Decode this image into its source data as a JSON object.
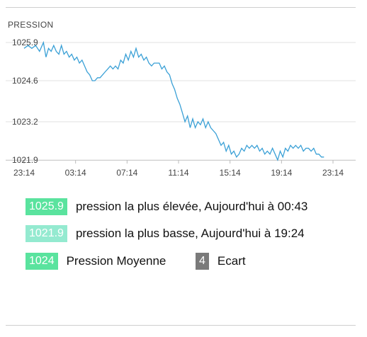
{
  "chart_data": {
    "type": "line",
    "title": "PRESSION",
    "xlabel": "",
    "ylabel": "",
    "y_ticks": [
      "1021.9",
      "1023.2",
      "1024.6",
      "1025.9"
    ],
    "x_ticks": [
      "23:14",
      "03:14",
      "07:14",
      "11:14",
      "15:14",
      "19:14",
      "23:14"
    ],
    "ylim": [
      1021.9,
      1025.9
    ],
    "grid": true,
    "line_color": "#3aa0d6",
    "series": [
      {
        "values": [
          [
            0.0,
            1025.7
          ],
          [
            0.3,
            1025.8
          ],
          [
            0.6,
            1025.7
          ],
          [
            0.9,
            1025.8
          ],
          [
            1.2,
            1025.6
          ],
          [
            1.5,
            1025.9
          ],
          [
            1.7,
            1025.4
          ],
          [
            1.9,
            1025.7
          ],
          [
            2.1,
            1025.6
          ],
          [
            2.3,
            1025.8
          ],
          [
            2.5,
            1025.6
          ],
          [
            2.7,
            1025.5
          ],
          [
            2.9,
            1025.8
          ],
          [
            3.1,
            1025.5
          ],
          [
            3.3,
            1025.6
          ],
          [
            3.5,
            1025.4
          ],
          [
            3.7,
            1025.5
          ],
          [
            3.9,
            1025.3
          ],
          [
            4.1,
            1025.4
          ],
          [
            4.3,
            1025.2
          ],
          [
            4.5,
            1025.3
          ],
          [
            4.7,
            1025.1
          ],
          [
            4.9,
            1024.9
          ],
          [
            5.1,
            1024.8
          ],
          [
            5.3,
            1024.6
          ],
          [
            5.5,
            1024.6
          ],
          [
            5.7,
            1024.7
          ],
          [
            5.9,
            1024.7
          ],
          [
            6.1,
            1024.8
          ],
          [
            6.3,
            1024.9
          ],
          [
            6.5,
            1025.0
          ],
          [
            6.7,
            1025.1
          ],
          [
            6.9,
            1025.0
          ],
          [
            7.1,
            1025.1
          ],
          [
            7.3,
            1025.0
          ],
          [
            7.5,
            1025.3
          ],
          [
            7.7,
            1025.2
          ],
          [
            7.9,
            1025.5
          ],
          [
            8.1,
            1025.3
          ],
          [
            8.3,
            1025.6
          ],
          [
            8.5,
            1025.4
          ],
          [
            8.7,
            1025.7
          ],
          [
            8.9,
            1025.4
          ],
          [
            9.1,
            1025.5
          ],
          [
            9.3,
            1025.3
          ],
          [
            9.5,
            1025.4
          ],
          [
            9.7,
            1025.2
          ],
          [
            9.9,
            1025.1
          ],
          [
            10.1,
            1025.2
          ],
          [
            10.3,
            1025.2
          ],
          [
            10.5,
            1025.2
          ],
          [
            10.7,
            1025.0
          ],
          [
            10.9,
            1025.1
          ],
          [
            11.1,
            1024.9
          ],
          [
            11.3,
            1024.8
          ],
          [
            11.5,
            1024.5
          ],
          [
            11.7,
            1024.3
          ],
          [
            11.9,
            1024.0
          ],
          [
            12.1,
            1023.8
          ],
          [
            12.3,
            1023.5
          ],
          [
            12.5,
            1023.2
          ],
          [
            12.7,
            1023.4
          ],
          [
            12.9,
            1023.0
          ],
          [
            13.1,
            1023.3
          ],
          [
            13.3,
            1023.0
          ],
          [
            13.5,
            1023.2
          ],
          [
            13.7,
            1023.1
          ],
          [
            13.9,
            1023.3
          ],
          [
            14.1,
            1023.0
          ],
          [
            14.3,
            1023.2
          ],
          [
            14.5,
            1023.0
          ],
          [
            14.7,
            1022.9
          ],
          [
            14.9,
            1022.8
          ],
          [
            15.1,
            1022.6
          ],
          [
            15.3,
            1022.4
          ],
          [
            15.5,
            1022.5
          ],
          [
            15.7,
            1022.2
          ],
          [
            15.9,
            1022.4
          ],
          [
            16.1,
            1022.1
          ],
          [
            16.3,
            1022.2
          ],
          [
            16.5,
            1022.0
          ],
          [
            16.7,
            1022.1
          ],
          [
            16.9,
            1022.3
          ],
          [
            17.1,
            1022.2
          ],
          [
            17.3,
            1022.4
          ],
          [
            17.5,
            1022.3
          ],
          [
            17.7,
            1022.4
          ],
          [
            17.9,
            1022.3
          ],
          [
            18.1,
            1022.4
          ],
          [
            18.3,
            1022.2
          ],
          [
            18.5,
            1022.3
          ],
          [
            18.7,
            1022.1
          ],
          [
            18.9,
            1022.2
          ],
          [
            19.1,
            1022.1
          ],
          [
            19.3,
            1022.3
          ],
          [
            19.5,
            1022.1
          ],
          [
            19.7,
            1021.9
          ],
          [
            19.9,
            1022.2
          ],
          [
            20.1,
            1022.0
          ],
          [
            20.3,
            1022.3
          ],
          [
            20.5,
            1022.2
          ],
          [
            20.7,
            1022.4
          ],
          [
            20.9,
            1022.3
          ],
          [
            21.1,
            1022.4
          ],
          [
            21.3,
            1022.3
          ],
          [
            21.5,
            1022.4
          ],
          [
            21.7,
            1022.2
          ],
          [
            21.9,
            1022.3
          ],
          [
            22.1,
            1022.3
          ],
          [
            22.3,
            1022.2
          ],
          [
            22.5,
            1022.3
          ],
          [
            22.7,
            1022.1
          ],
          [
            22.9,
            1022.1
          ],
          [
            23.1,
            1022.0
          ],
          [
            23.3,
            1022.0
          ]
        ]
      }
    ]
  },
  "stats": {
    "high_value": "1025.9",
    "high_text": "pression la plus élevée, Aujourd'hui à 00:43",
    "high_color": "#5ae39e",
    "low_value": "1021.9",
    "low_text": "pression la plus basse, Aujourd'hui à 19:24",
    "low_color": "#94ead0",
    "avg_value": "1024",
    "avg_text": "Pression Moyenne",
    "ecart_value": "4",
    "ecart_text": "Ecart",
    "ecart_color": "#7a7a7a"
  }
}
